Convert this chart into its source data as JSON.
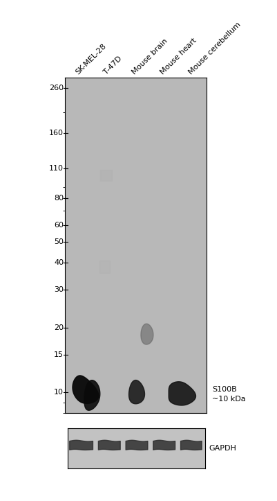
{
  "fig_bg": "#ffffff",
  "blot_bg": "#b8b8b8",
  "gapdh_bg": "#c2c2c2",
  "ladder_labels": [
    "260",
    "160",
    "110",
    "80",
    "60",
    "50",
    "40",
    "30",
    "20",
    "15",
    "10"
  ],
  "ladder_values": [
    260,
    160,
    110,
    80,
    60,
    50,
    40,
    30,
    20,
    15,
    10
  ],
  "sample_labels": [
    "SK-MEL-28",
    "T-47D",
    "Mouse brain",
    "Mouse heart",
    "Mouse cerebellum"
  ],
  "annotation_s100b_line1": "S100B",
  "annotation_s100b_line2": "~10 kDa",
  "annotation_gapdh": "GAPDH",
  "ymin": 8.0,
  "ymax": 290,
  "ncols": 5,
  "col_positions": [
    0.5,
    1.5,
    2.5,
    3.5,
    4.5
  ]
}
